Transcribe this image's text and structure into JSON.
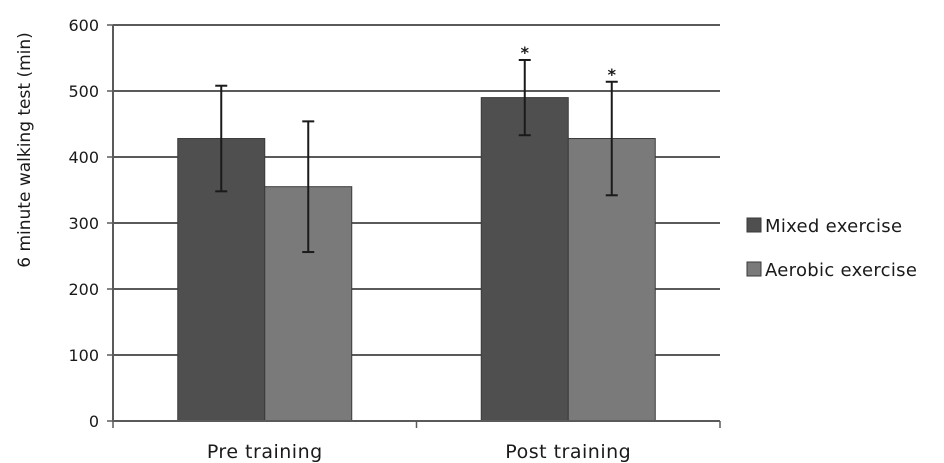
{
  "chart_data": {
    "type": "bar",
    "categories": [
      "Pre training",
      "Post training"
    ],
    "series": [
      {
        "name": "Mixed exercise",
        "values": [
          428,
          490
        ],
        "error": [
          80,
          57
        ],
        "color": "#4f4f4f"
      },
      {
        "name": "Aerobic exercise",
        "values": [
          355,
          428
        ],
        "error": [
          99,
          86
        ],
        "color": "#7a7a7a"
      }
    ],
    "significance": [
      [
        "",
        "*"
      ],
      [
        "",
        "*"
      ]
    ],
    "ylabel": "6 minute walking test (min)",
    "xlabel": "",
    "title": "",
    "ylim": [
      0,
      600
    ],
    "yticks": [
      0,
      100,
      200,
      300,
      400,
      500,
      600
    ],
    "grid": true,
    "legend_position": "right"
  }
}
